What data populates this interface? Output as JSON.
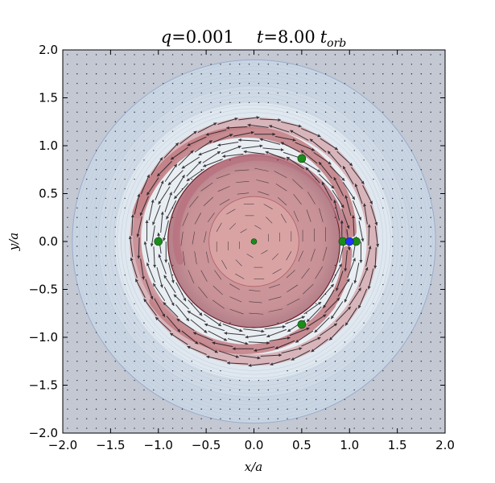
{
  "chart_data": {
    "type": "vector-field-contour",
    "title": {
      "q_symbol": "q",
      "q_eq": "=0.001",
      "t_symbol": "t",
      "t_eq": "=8.00",
      "t_unit": "t",
      "t_unit_sub": "orb"
    },
    "xlabel": "x/a",
    "ylabel": "y/a",
    "xlim": [
      -2.0,
      2.0
    ],
    "ylim": [
      -2.0,
      2.0
    ],
    "xticks": [
      "−2.0",
      "−1.5",
      "−1.0",
      "−0.5",
      "0.0",
      "0.5",
      "1.0",
      "1.5",
      "2.0"
    ],
    "yticks": [
      "2.0",
      "1.5",
      "1.0",
      "0.5",
      "0.0",
      "−0.5",
      "−1.0",
      "−1.5",
      "−2.0"
    ],
    "tick_values": [
      -2.0,
      -1.5,
      -1.0,
      -0.5,
      0.0,
      0.5,
      1.0,
      1.5,
      2.0
    ],
    "markers": [
      {
        "name": "L4",
        "x": 0.5,
        "y": 0.866,
        "color": "#1a8c1a"
      },
      {
        "name": "L5",
        "x": 0.5,
        "y": -0.866,
        "color": "#1a8c1a"
      },
      {
        "name": "L3",
        "x": -1.0,
        "y": 0.0,
        "color": "#1a8c1a"
      },
      {
        "name": "L1",
        "x": 0.93,
        "y": 0.0,
        "color": "#1a8c1a"
      },
      {
        "name": "L2",
        "x": 1.07,
        "y": 0.0,
        "color": "#1a8c1a"
      },
      {
        "name": "primary",
        "x": 0.0,
        "y": 0.0,
        "color": "#1a8c1a"
      },
      {
        "name": "planet",
        "x": 1.0,
        "y": 0.0,
        "color": "#2233ff"
      }
    ],
    "colors": {
      "background": "#c3c8d3",
      "outer_disk": "#c9d5e2",
      "gap_band": "#dfe7ef",
      "density_high": "#c07a80",
      "inner_disk": "#d4a0a2",
      "arrow": "#1c1c22"
    },
    "grid": false
  }
}
